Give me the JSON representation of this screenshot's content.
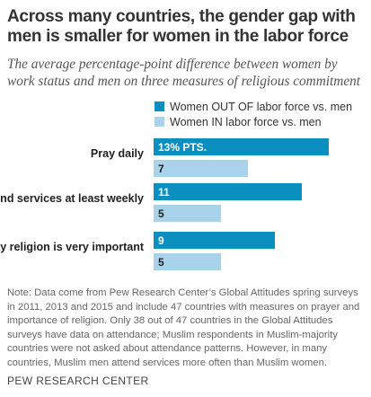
{
  "title": "Across many countries, the gender gap with men is smaller for women in the labor force",
  "subtitle": "The average percentage-point difference between women by work status and men on three measures of religious commitment",
  "note": "Note: Data come from Pew Research Center’s Global Attitudes spring surveys in 2011, 2013 and 2015 and include 47 countries with measures on prayer and importance of religion. Only 38 out of 47 countries in the Global Attitudes surveys have data on attendance; Muslim respondents in Muslim-majority countries were not asked about attendance patterns. However, in many countries, Muslim men attend services more often than Muslim women.",
  "source": "PEW RESEARCH CENTER",
  "colors": {
    "out": "#0b8fc0",
    "in": "#a9d3ea",
    "label_dark": "#ffffff",
    "label_light": "#222222"
  },
  "chart_data": {
    "type": "bar",
    "orientation": "horizontal",
    "categories": [
      "Pray daily",
      "Attend services at least weekly",
      "Say religion is very important"
    ],
    "series": [
      {
        "name": "Women OUT OF labor force vs. men",
        "values": [
          13,
          11,
          9
        ],
        "labels": [
          "13% PTS.",
          "11",
          "9"
        ]
      },
      {
        "name": "Women IN labor force vs. men",
        "values": [
          7,
          5,
          5
        ],
        "labels": [
          "7",
          "5",
          "5"
        ]
      }
    ],
    "xlim": [
      0,
      13
    ],
    "legend": "top",
    "grid": false
  }
}
